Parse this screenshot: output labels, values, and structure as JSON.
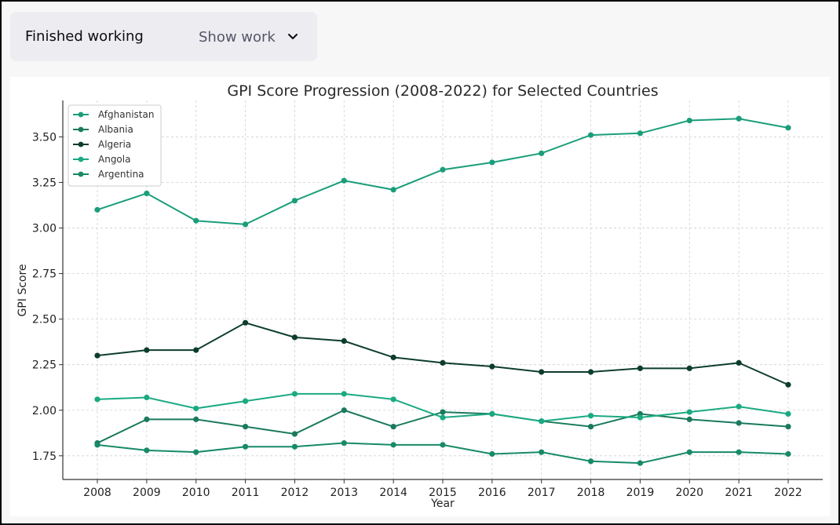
{
  "status": {
    "text": "Finished working",
    "show_work_label": "Show work",
    "chevron_icon": "chevron-down-icon"
  },
  "chart_data": {
    "type": "line",
    "title": "GPI Score Progression (2008-2022) for Selected Countries",
    "xlabel": "Year",
    "ylabel": "GPI Score",
    "x": [
      2008,
      2009,
      2010,
      2011,
      2012,
      2013,
      2014,
      2015,
      2016,
      2017,
      2018,
      2019,
      2020,
      2021,
      2022
    ],
    "ylim": [
      1.62,
      3.7
    ],
    "yticks": [
      "1.75",
      "2.00",
      "2.25",
      "2.50",
      "2.75",
      "3.00",
      "3.25",
      "3.50"
    ],
    "grid": true,
    "legend_position": "top-left",
    "series": [
      {
        "name": "Afghanistan",
        "color": "#1a9e7a",
        "values": [
          3.1,
          3.19,
          3.04,
          3.02,
          3.15,
          3.26,
          3.21,
          3.32,
          3.36,
          3.41,
          3.51,
          3.52,
          3.59,
          3.6,
          3.55
        ]
      },
      {
        "name": "Albania",
        "color": "#1a7a5e",
        "values": [
          1.82,
          1.95,
          1.95,
          1.91,
          1.87,
          2.0,
          1.91,
          1.99,
          1.98,
          1.94,
          1.91,
          1.98,
          1.95,
          1.93,
          1.91
        ]
      },
      {
        "name": "Algeria",
        "color": "#0d3d2c",
        "values": [
          2.3,
          2.33,
          2.33,
          2.48,
          2.4,
          2.38,
          2.29,
          2.26,
          2.24,
          2.21,
          2.21,
          2.23,
          2.23,
          2.26,
          2.14
        ]
      },
      {
        "name": "Angola",
        "color": "#1aaa82",
        "values": [
          2.06,
          2.07,
          2.01,
          2.05,
          2.09,
          2.09,
          2.06,
          1.96,
          1.98,
          1.94,
          1.97,
          1.96,
          1.99,
          2.02,
          1.98
        ]
      },
      {
        "name": "Argentina",
        "color": "#178a68",
        "values": [
          1.81,
          1.78,
          1.77,
          1.8,
          1.8,
          1.82,
          1.81,
          1.81,
          1.76,
          1.77,
          1.72,
          1.71,
          1.77,
          1.77,
          1.76
        ]
      }
    ]
  }
}
